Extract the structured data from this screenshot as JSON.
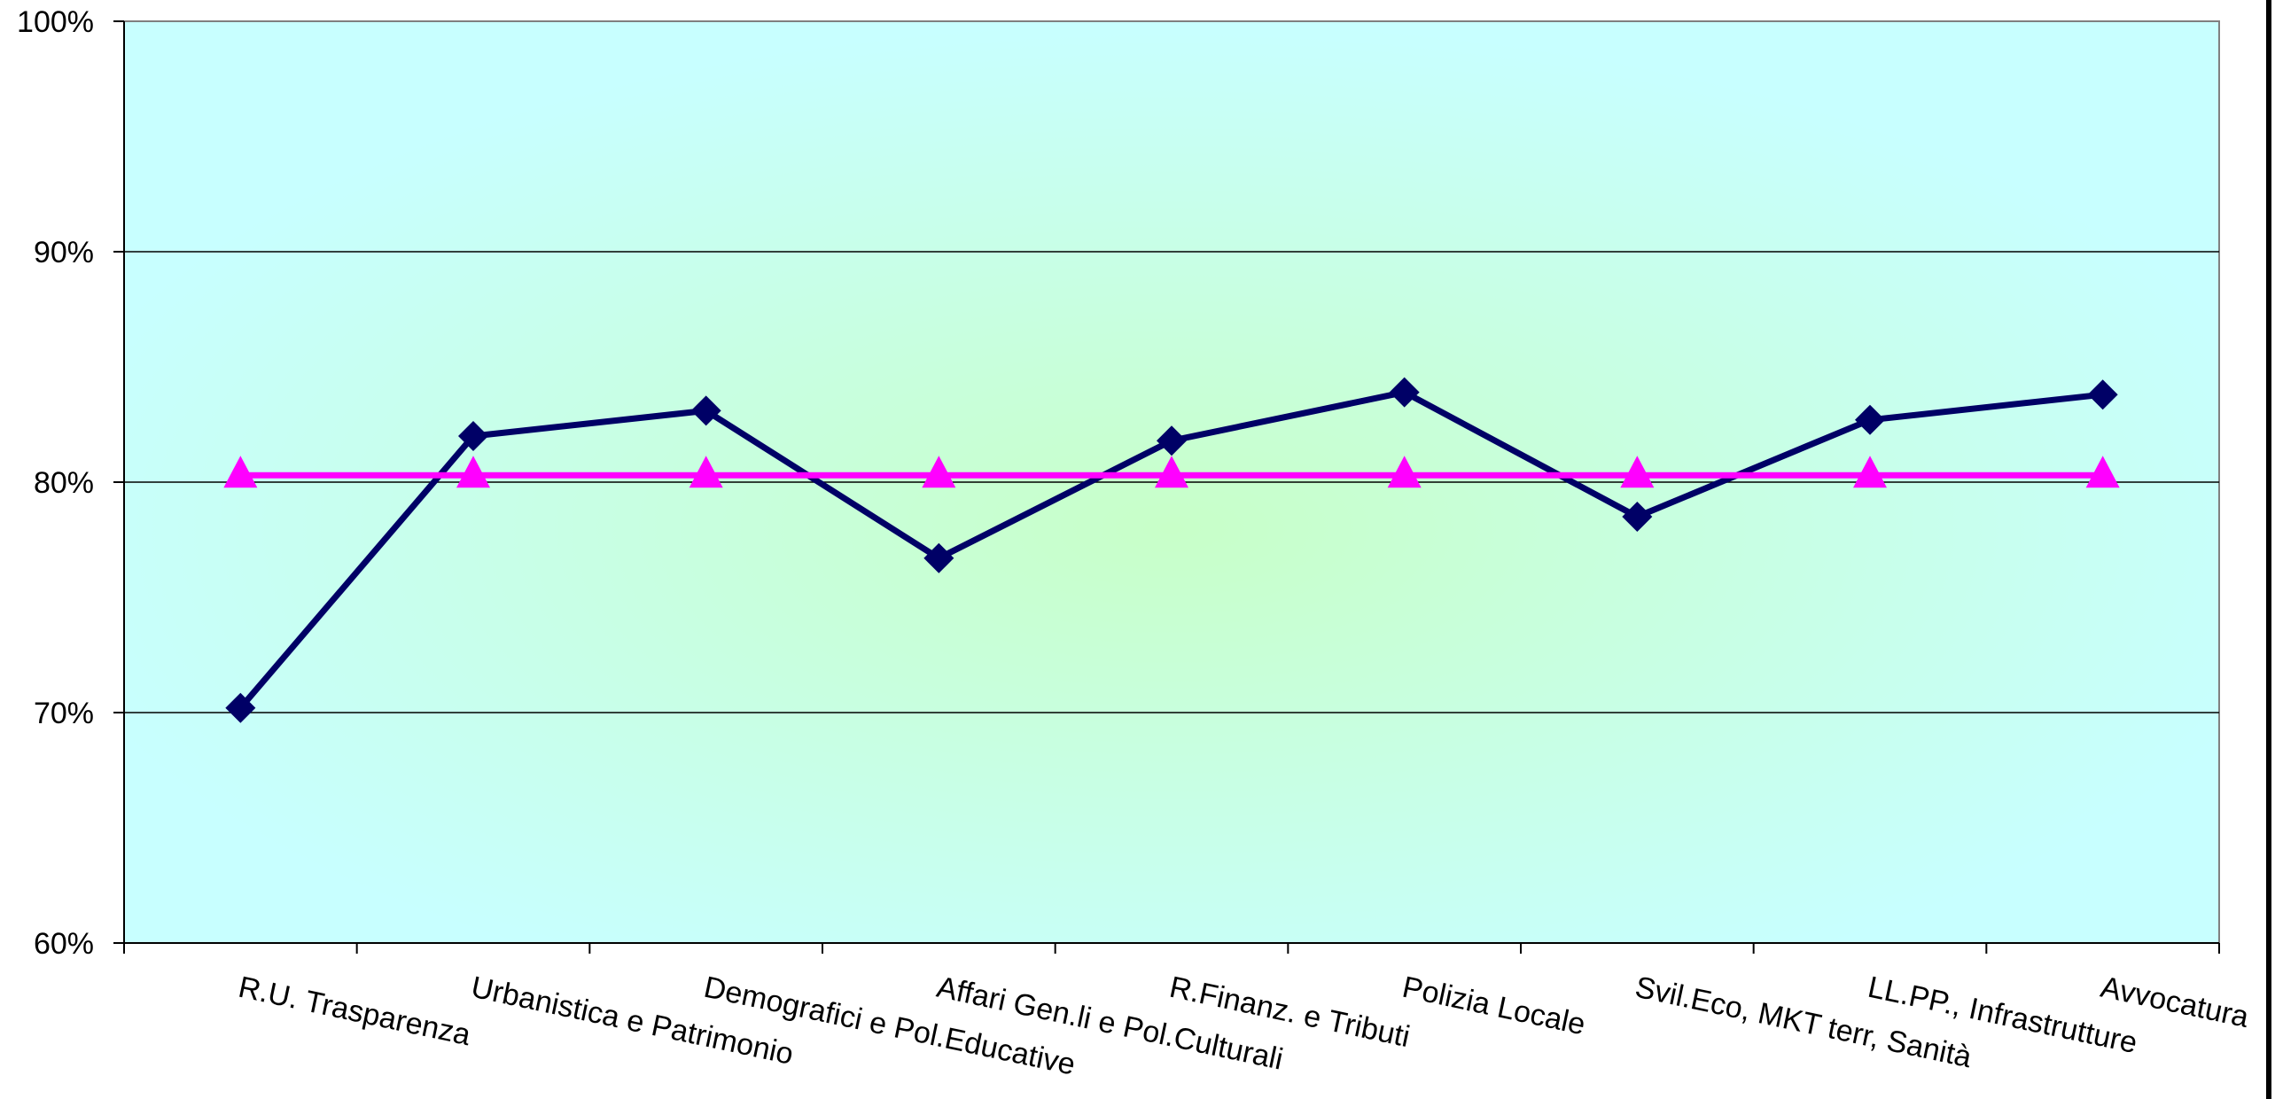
{
  "chart_data": {
    "type": "line",
    "title": "",
    "xlabel": "",
    "ylabel": "",
    "categories": [
      "R.U. Trasparenza",
      "Urbanistica e Patrimonio",
      "Demografici e Pol.Educative",
      "Affari Gen.li e Pol.Culturali",
      "R.Finanz. e Tributi",
      "Polizia Locale",
      "Svil.Eco, MKT terr, Sanità",
      "LL.PP., Infrastrutture",
      "Avvocatura"
    ],
    "series": [
      {
        "values": [
          70.2,
          82.0,
          83.1,
          76.7,
          81.8,
          83.9,
          78.5,
          82.7,
          83.8
        ],
        "color": "#000066",
        "marker": "diamond"
      },
      {
        "values": [
          80.3,
          80.3,
          80.3,
          80.3,
          80.3,
          80.3,
          80.3,
          80.3,
          80.3
        ],
        "color": "#ff00ff",
        "marker": "triangle"
      }
    ],
    "ylim": [
      60,
      100
    ],
    "yticks": [
      "60%",
      "70%",
      "80%",
      "90%",
      "100%"
    ],
    "grid": true,
    "legend": "none",
    "background_colors": {
      "outer": "#c8ffff",
      "center": "#c8ffc8"
    }
  }
}
